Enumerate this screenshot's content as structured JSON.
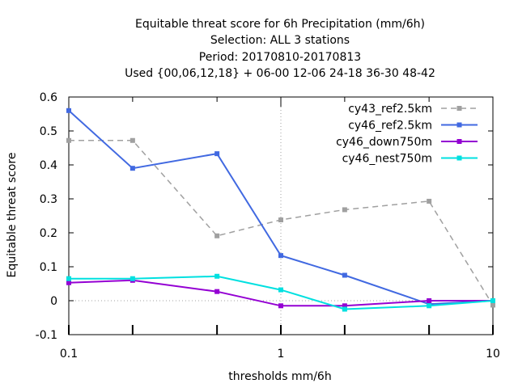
{
  "chart_data": {
    "type": "line",
    "title_lines": [
      "Equitable threat score  for 6h Precipitation (mm/6h)",
      "Selection: ALL      3 stations",
      "Period: 20170810-20170813",
      "Used {00,06,12,18} + 06-00 12-06 24-18 36-30 48-42"
    ],
    "xlabel": "thresholds mm/6h",
    "ylabel": "Equitable threat score",
    "x_scale": "log",
    "xlim": [
      0.1,
      10
    ],
    "ylim": [
      -0.1,
      0.6
    ],
    "x_ticks": [
      {
        "value": 0.1,
        "label": "0.1"
      },
      {
        "value": 1,
        "label": "1"
      },
      {
        "value": 10,
        "label": "10"
      }
    ],
    "x_minor_ticks": [
      0.2,
      0.5,
      2,
      5
    ],
    "y_ticks": [
      {
        "value": -0.1,
        "label": "-0.1"
      },
      {
        "value": 0,
        "label": "0"
      },
      {
        "value": 0.1,
        "label": "0.1"
      },
      {
        "value": 0.2,
        "label": "0.2"
      },
      {
        "value": 0.3,
        "label": "0.3"
      },
      {
        "value": 0.4,
        "label": "0.4"
      },
      {
        "value": 0.5,
        "label": "0.5"
      },
      {
        "value": 0.6,
        "label": "0.6"
      }
    ],
    "grid": "dotted at x=1",
    "legend_position": "top-right",
    "x": [
      0.1,
      0.2,
      0.5,
      1,
      2,
      5,
      10
    ],
    "series": [
      {
        "name": "cy43_ref2.5km",
        "color": "#a0a0a0",
        "dashed": true,
        "values": [
          0.472,
          0.472,
          0.191,
          0.238,
          0.268,
          0.293,
          -0.013
        ]
      },
      {
        "name": "cy46_ref2.5km",
        "color": "#4169e1",
        "dashed": false,
        "values": [
          0.56,
          0.39,
          0.433,
          0.133,
          0.075,
          -0.01,
          0.0
        ]
      },
      {
        "name": "cy46_down750m",
        "color": "#9400d3",
        "dashed": false,
        "values": [
          0.053,
          0.06,
          0.027,
          -0.015,
          -0.015,
          0.0,
          0.0
        ]
      },
      {
        "name": "cy46_nest750m",
        "color": "#00e0e0",
        "dashed": false,
        "values": [
          0.065,
          0.065,
          0.072,
          0.032,
          -0.025,
          -0.015,
          0.0
        ]
      }
    ]
  }
}
